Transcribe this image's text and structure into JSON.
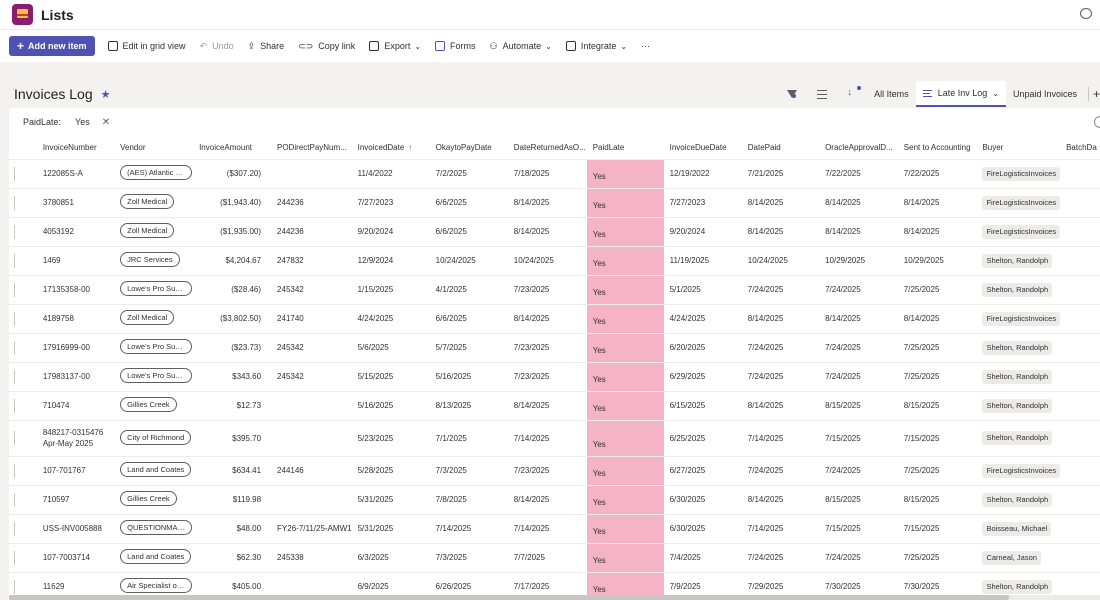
{
  "app": {
    "title": "Lists"
  },
  "commands": {
    "add_new": "Add new item",
    "grid_view": "Edit in grid view",
    "undo": "Undo",
    "share": "Share",
    "copy_link": "Copy link",
    "export": "Export",
    "forms": "Forms",
    "automate": "Automate",
    "integrate": "Integrate",
    "more": "···"
  },
  "list": {
    "title": "Invoices Log",
    "star": "★"
  },
  "views": {
    "all_items": "All Items",
    "late": "Late Inv Log",
    "unpaid": "Unpaid Invoices",
    "add": "+"
  },
  "filter": {
    "label": "PaidLate:",
    "value": "Yes",
    "clear": "✕"
  },
  "columns": {
    "invoice_number": "InvoiceNumber",
    "vendor": "Vendor",
    "amount": "InvoiceAmount",
    "po": "PODirectPayNum...",
    "invoiced_date": "InvoicedDate",
    "sort_arrow": "↑",
    "okay_to_pay": "OkaytoPayDate",
    "date_returned": "DateReturnedAsO...",
    "paid_late": "PaidLate",
    "due_date": "InvoiceDueDate",
    "date_paid": "DatePaid",
    "oracle": "OracleApprovalD...",
    "sent": "Sent to Accounting",
    "buyer": "Buyer",
    "batch": "BatchDa"
  },
  "rows": [
    {
      "inv": "122085S-A",
      "vendor": "(AES) Atlantic E...",
      "amount": "($307.20)",
      "po": "",
      "invoiced": "11/4/2022",
      "okay": "7/2/2025",
      "returned": "7/18/2025",
      "late": "Yes",
      "due": "12/19/2022",
      "paid": "7/21/2025",
      "oracle": "7/22/2025",
      "sent": "7/22/2025",
      "buyer": "FireLogisticsInvoices"
    },
    {
      "inv": "3780851",
      "vendor": "Zoll Medical",
      "amount": "($1,943.40)",
      "po": "244236",
      "invoiced": "7/27/2023",
      "okay": "6/6/2025",
      "returned": "8/14/2025",
      "late": "Yes",
      "due": "7/27/2023",
      "paid": "8/14/2025",
      "oracle": "8/14/2025",
      "sent": "8/14/2025",
      "buyer": "FireLogisticsInvoices"
    },
    {
      "inv": "4053192",
      "vendor": "Zoll Medical",
      "amount": "($1,935.00)",
      "po": "244236",
      "invoiced": "9/20/2024",
      "okay": "6/6/2025",
      "returned": "8/14/2025",
      "late": "Yes",
      "due": "9/20/2024",
      "paid": "8/14/2025",
      "oracle": "8/14/2025",
      "sent": "8/14/2025",
      "buyer": "FireLogisticsInvoices"
    },
    {
      "inv": "1469",
      "vendor": "JRC Services",
      "amount": "$4,204.67",
      "po": "247832",
      "invoiced": "12/9/2024",
      "okay": "10/24/2025",
      "returned": "10/24/2025",
      "late": "Yes",
      "due": "11/19/2025",
      "paid": "10/24/2025",
      "oracle": "10/29/2025",
      "sent": "10/29/2025",
      "buyer": "Shelton, Randolph"
    },
    {
      "inv": "17135358-00",
      "vendor": "Lowe's Pro Sup...",
      "amount": "($28.46)",
      "po": "245342",
      "invoiced": "1/15/2025",
      "okay": "4/1/2025",
      "returned": "7/23/2025",
      "late": "Yes",
      "due": "5/1/2025",
      "paid": "7/24/2025",
      "oracle": "7/24/2025",
      "sent": "7/25/2025",
      "buyer": "Shelton, Randolph"
    },
    {
      "inv": "4189758",
      "vendor": "Zoll Medical",
      "amount": "($3,802.50)",
      "po": "241740",
      "invoiced": "4/24/2025",
      "okay": "6/6/2025",
      "returned": "8/14/2025",
      "late": "Yes",
      "due": "4/24/2025",
      "paid": "8/14/2025",
      "oracle": "8/14/2025",
      "sent": "8/14/2025",
      "buyer": "FireLogisticsInvoices"
    },
    {
      "inv": "17916999-00",
      "vendor": "Lowe's Pro Sup...",
      "amount": "($23.73)",
      "po": "245342",
      "invoiced": "5/6/2025",
      "okay": "5/7/2025",
      "returned": "7/23/2025",
      "late": "Yes",
      "due": "6/20/2025",
      "paid": "7/24/2025",
      "oracle": "7/24/2025",
      "sent": "7/25/2025",
      "buyer": "Shelton, Randolph"
    },
    {
      "inv": "17983137-00",
      "vendor": "Lowe's Pro Sup...",
      "amount": "$343.60",
      "po": "245342",
      "invoiced": "5/15/2025",
      "okay": "5/16/2025",
      "returned": "7/23/2025",
      "late": "Yes",
      "due": "6/29/2025",
      "paid": "7/24/2025",
      "oracle": "7/24/2025",
      "sent": "7/25/2025",
      "buyer": "Shelton, Randolph"
    },
    {
      "inv": "710474",
      "vendor": "Gillies Creek",
      "amount": "$12.73",
      "po": "",
      "invoiced": "5/16/2025",
      "okay": "8/13/2025",
      "returned": "8/14/2025",
      "late": "Yes",
      "due": "6/15/2025",
      "paid": "8/14/2025",
      "oracle": "8/15/2025",
      "sent": "8/15/2025",
      "buyer": "Shelton, Randolph"
    },
    {
      "inv": "848217-0315476",
      "inv2": "Apr-May 2025",
      "vendor": "City of Richmond",
      "amount": "$395.70",
      "po": "",
      "invoiced": "5/23/2025",
      "okay": "7/1/2025",
      "returned": "7/14/2025",
      "late": "Yes",
      "due": "6/25/2025",
      "paid": "7/14/2025",
      "oracle": "7/15/2025",
      "sent": "7/15/2025",
      "buyer": "Shelton, Randolph"
    },
    {
      "inv": "107-701767",
      "vendor": "Land and Coates",
      "amount": "$634.41",
      "po": "244146",
      "invoiced": "5/28/2025",
      "okay": "7/3/2025",
      "returned": "7/23/2025",
      "late": "Yes",
      "due": "6/27/2025",
      "paid": "7/24/2025",
      "oracle": "7/24/2025",
      "sent": "7/25/2025",
      "buyer": "FireLogisticsInvoices"
    },
    {
      "inv": "710597",
      "vendor": "Gillies Creek",
      "amount": "$119.98",
      "po": "",
      "invoiced": "5/31/2025",
      "okay": "7/8/2025",
      "returned": "8/14/2025",
      "late": "Yes",
      "due": "6/30/2025",
      "paid": "8/14/2025",
      "oracle": "8/15/2025",
      "sent": "8/15/2025",
      "buyer": "Shelton, Randolph"
    },
    {
      "inv": "USS-INV005888",
      "vendor": "QUESTIONMARK",
      "amount": "$48.00",
      "po": "FY26-7/11/25-AMW1",
      "invoiced": "5/31/2025",
      "okay": "7/14/2025",
      "returned": "7/14/2025",
      "late": "Yes",
      "due": "6/30/2025",
      "paid": "7/14/2025",
      "oracle": "7/15/2025",
      "sent": "7/15/2025",
      "buyer": "Boisseau, Michael"
    },
    {
      "inv": "107-7003714",
      "vendor": "Land and Coates",
      "amount": "$62.30",
      "po": "245338",
      "invoiced": "6/3/2025",
      "okay": "7/3/2025",
      "returned": "7/7/2025",
      "late": "Yes",
      "due": "7/4/2025",
      "paid": "7/24/2025",
      "oracle": "7/24/2025",
      "sent": "7/25/2025",
      "buyer": "Carneal, Jason"
    },
    {
      "inv": "11629",
      "vendor": "Air Specialist of ...",
      "amount": "$405.00",
      "po": "",
      "invoiced": "6/9/2025",
      "okay": "6/26/2025",
      "returned": "7/17/2025",
      "late": "Yes",
      "due": "7/9/2025",
      "paid": "7/29/2025",
      "oracle": "7/30/2025",
      "sent": "7/30/2025",
      "buyer": "Shelton, Randolph"
    }
  ],
  "colors": {
    "accent": "#4f52b2",
    "late_highlight": "#f4b3c6",
    "app_logo": "#8a1e6e"
  }
}
